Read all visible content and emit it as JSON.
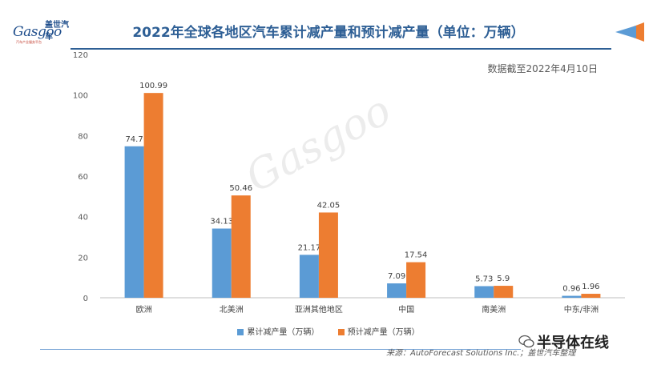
{
  "header": {
    "title": "2022年全球各地区汽车累计减产量和预计减产量（单位：万辆）",
    "logo_cn": "盖世汽车",
    "logo_en": "Gasgoo",
    "logo_sub": "汽车产业服务平台"
  },
  "note": "数据截至2022年4月10日",
  "watermark": "Gasgoo",
  "source": "来源：AutoForecast Solutions Inc.；盖世汽车整理",
  "brand": "半导体在线",
  "colors": {
    "series1": "#5b9bd5",
    "series2": "#ed7d31",
    "title": "#2e5f95"
  },
  "chart_data": {
    "type": "bar",
    "categories": [
      "欧洲",
      "北美洲",
      "亚洲其他地区",
      "中国",
      "南美洲",
      "中东/非洲"
    ],
    "series": [
      {
        "name": "累计减产量（万辆）",
        "values": [
          74.7,
          34.13,
          21.17,
          7.09,
          5.73,
          0.96
        ],
        "labels": [
          "74.7",
          "34.13",
          "21.17",
          "7.09",
          "5.73",
          "0.96"
        ]
      },
      {
        "name": "预计减产量（万辆）",
        "values": [
          100.99,
          50.46,
          42.05,
          17.54,
          5.9,
          1.96
        ],
        "labels": [
          "100.99",
          "50.46",
          "42.05",
          "17.54",
          "5.9",
          "1.96"
        ]
      }
    ],
    "ylim": [
      0,
      120
    ],
    "yticks": [
      0,
      20,
      40,
      60,
      80,
      100,
      120
    ],
    "grid": false,
    "legend": "bottom"
  }
}
